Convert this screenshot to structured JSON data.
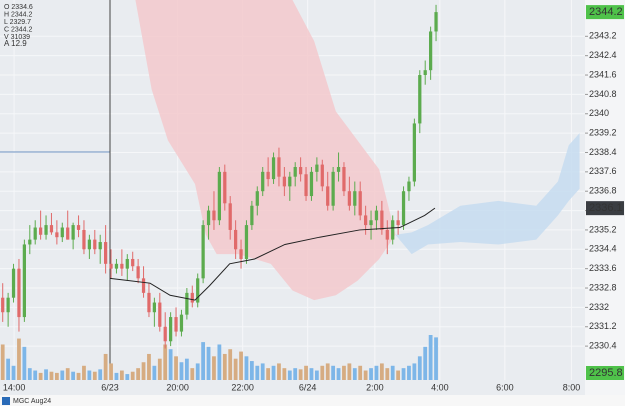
{
  "chart_data": {
    "type": "candlestick",
    "ylim": [
      2329.0,
      2344.7
    ],
    "yticks": [
      2330.4,
      2331.2,
      2332.0,
      2332.8,
      2333.6,
      2334.4,
      2335.2,
      2336.0,
      2336.8,
      2337.6,
      2338.4,
      2339.2,
      2340.0,
      2340.8,
      2341.6,
      2342.4,
      2343.2
    ],
    "xlim": [
      0,
      108
    ],
    "xticks": [
      {
        "value": 2.6,
        "label": "14:00"
      },
      {
        "value": 20.3,
        "label": "6/23"
      },
      {
        "value": 32.8,
        "label": "20:00"
      },
      {
        "value": 44.8,
        "label": "22:00"
      },
      {
        "value": 56.8,
        "label": "6/24"
      },
      {
        "value": 69.2,
        "label": "2:00"
      },
      {
        "value": 81.2,
        "label": "4:00"
      },
      {
        "value": 93.2,
        "label": "6:00"
      },
      {
        "value": 105.5,
        "label": "8:00"
      }
    ],
    "grid": true,
    "up_color": "#5cab4e",
    "down_color": "#e06a6a",
    "volume_up_color": "#7db6e8",
    "volume_down_color": "#d6ac82",
    "open": [
      2332.4,
      2331.8,
      2332.4,
      2333.6,
      2331.6,
      2334.6,
      2334.8,
      2335.3,
      2335.0,
      2335.4,
      2335.1,
      2334.9,
      2335.3,
      2334.8,
      2335.4,
      2335.2,
      2334.4,
      2334.8,
      2334.4,
      2334.7,
      2333.8,
      2333.6,
      2333.8,
      2333.6,
      2334.0,
      2333.7,
      2333.2,
      2332.6,
      2331.8,
      2332.2,
      2331.2,
      2330.6,
      2331.6,
      2331.0,
      2331.7,
      2332.6,
      2332.2,
      2333.2,
      2335.4,
      2336.0,
      2335.6,
      2337.6,
      2336.3,
      2335.2,
      2334.4,
      2334.0,
      2335.4,
      2336.2,
      2336.8,
      2337.6,
      2337.3,
      2338.2,
      2337.4,
      2337.0,
      2337.4,
      2337.8,
      2337.5,
      2336.6,
      2337.6,
      2337.9,
      2337.0,
      2336.2,
      2337.6,
      2337.8,
      2336.8,
      2336.2,
      2336.8,
      2335.8,
      2335.4,
      2335.6,
      2336.0,
      2335.2,
      2334.8,
      2335.6,
      2335.4,
      2336.8,
      2337.2,
      2339.6,
      2341.6,
      2341.8,
      2343.4
    ],
    "high": [
      2333.0,
      2332.6,
      2333.8,
      2334.0,
      2334.8,
      2335.4,
      2335.6,
      2336.0,
      2335.8,
      2335.9,
      2335.6,
      2335.5,
      2336.0,
      2335.5,
      2335.8,
      2335.6,
      2335.0,
      2335.2,
      2335.0,
      2335.4,
      2334.4,
      2334.0,
      2334.4,
      2334.2,
      2334.3,
      2334.0,
      2333.7,
      2333.0,
      2332.4,
      2332.6,
      2331.8,
      2331.8,
      2332.0,
      2331.9,
      2332.8,
      2332.9,
      2333.4,
      2335.6,
      2336.2,
      2336.8,
      2337.8,
      2337.9,
      2336.6,
      2335.6,
      2334.8,
      2335.6,
      2336.4,
      2337.0,
      2337.8,
      2338.2,
      2338.4,
      2338.6,
      2337.8,
      2337.6,
      2338.0,
      2338.2,
      2337.8,
      2337.8,
      2338.2,
      2338.1,
      2337.6,
      2337.8,
      2338.4,
      2338.0,
      2337.4,
      2337.2,
      2337.2,
      2336.2,
      2336.0,
      2336.2,
      2336.4,
      2335.6,
      2335.8,
      2336.0,
      2337.0,
      2337.4,
      2339.8,
      2341.8,
      2342.2,
      2343.6,
      2344.5
    ],
    "low": [
      2331.4,
      2331.2,
      2332.2,
      2331.0,
      2331.4,
      2334.2,
      2334.6,
      2334.8,
      2334.8,
      2335.0,
      2334.6,
      2334.7,
      2334.8,
      2334.4,
      2334.9,
      2334.2,
      2334.0,
      2334.2,
      2333.8,
      2333.4,
      2333.2,
      2333.4,
      2333.3,
      2333.1,
      2333.5,
      2333.0,
      2332.4,
      2331.6,
      2331.2,
      2331.0,
      2330.3,
      2330.4,
      2330.8,
      2330.8,
      2331.5,
      2332.0,
      2332.0,
      2333.0,
      2334.8,
      2335.2,
      2335.4,
      2336.0,
      2334.8,
      2334.0,
      2333.6,
      2333.8,
      2335.2,
      2335.8,
      2336.6,
      2337.0,
      2337.1,
      2337.0,
      2336.6,
      2336.4,
      2337.0,
      2337.2,
      2336.4,
      2336.4,
      2337.2,
      2336.8,
      2336.0,
      2336.0,
      2337.2,
      2336.6,
      2336.0,
      2335.8,
      2335.6,
      2335.0,
      2334.8,
      2335.2,
      2335.0,
      2334.2,
      2334.6,
      2335.0,
      2335.2,
      2336.4,
      2337.0,
      2339.2,
      2341.2,
      2341.4,
      2343.0
    ],
    "close": [
      2331.8,
      2332.4,
      2333.6,
      2331.6,
      2334.6,
      2334.8,
      2335.3,
      2335.0,
      2335.4,
      2335.1,
      2334.9,
      2335.3,
      2334.8,
      2335.4,
      2335.2,
      2334.4,
      2334.8,
      2334.4,
      2334.7,
      2333.8,
      2333.6,
      2333.8,
      2333.6,
      2334.0,
      2333.7,
      2333.2,
      2332.6,
      2331.8,
      2332.2,
      2331.2,
      2330.6,
      2331.6,
      2331.0,
      2331.7,
      2332.6,
      2332.2,
      2333.2,
      2335.4,
      2336.0,
      2335.6,
      2337.6,
      2336.3,
      2335.2,
      2334.4,
      2334.0,
      2335.4,
      2336.2,
      2336.8,
      2337.6,
      2337.3,
      2338.2,
      2337.4,
      2337.0,
      2337.4,
      2337.8,
      2337.5,
      2336.6,
      2337.6,
      2337.9,
      2337.0,
      2336.2,
      2337.6,
      2337.8,
      2336.8,
      2336.2,
      2336.8,
      2335.8,
      2335.4,
      2335.6,
      2336.0,
      2335.2,
      2334.8,
      2335.6,
      2335.4,
      2336.8,
      2337.2,
      2339.6,
      2341.6,
      2341.8,
      2343.4,
      2344.2
    ],
    "volume": [
      30,
      18,
      12,
      35,
      28,
      10,
      8,
      6,
      9,
      7,
      6,
      8,
      10,
      7,
      6,
      12,
      8,
      7,
      9,
      22,
      14,
      6,
      8,
      5,
      7,
      10,
      15,
      22,
      12,
      18,
      30,
      26,
      20,
      15,
      18,
      10,
      14,
      32,
      28,
      20,
      30,
      22,
      26,
      18,
      24,
      20,
      16,
      12,
      14,
      10,
      12,
      14,
      10,
      8,
      10,
      9,
      12,
      10,
      8,
      12,
      14,
      12,
      10,
      12,
      14,
      10,
      12,
      8,
      10,
      12,
      14,
      10,
      12,
      8,
      10,
      12,
      14,
      20,
      28,
      38,
      36
    ],
    "cloud_bear": {
      "color": "#f3c9cc",
      "x": [
        25,
        28,
        31,
        36,
        38,
        40,
        44,
        50,
        54,
        58,
        62,
        66,
        70,
        73
      ],
      "upper": [
        2344.7,
        2344.7,
        2344.7,
        2344.7,
        2344.7,
        2344.7,
        2344.7,
        2344.7,
        2344.7,
        2343.0,
        2340.1,
        2338.9,
        2337.7,
        2335.0
      ],
      "lower": [
        2344.7,
        2341.0,
        2338.9,
        2337.1,
        2335.0,
        2334.2,
        2334.2,
        2333.8,
        2332.7,
        2332.3,
        2332.5,
        2333.1,
        2334.0,
        2335.0
      ]
    },
    "cloud_bull": {
      "color": "#c6dcf0",
      "x": [
        73,
        76,
        79,
        85,
        92,
        99,
        103,
        105,
        107
      ],
      "upper": [
        2335.0,
        2335.1,
        2335.4,
        2336.2,
        2336.4,
        2336.2,
        2337.2,
        2338.7,
        2339.2
      ],
      "lower": [
        2335.0,
        2334.2,
        2334.6,
        2334.7,
        2334.6,
        2334.8,
        2335.8,
        2336.4,
        2336.9
      ]
    },
    "ma": {
      "color": "#222222",
      "x": [
        20.3,
        27.7,
        31.4,
        36,
        38.7,
        42.4,
        47,
        52.6,
        59,
        66.4,
        73.8,
        78.4,
        80.3
      ],
      "values": [
        2333.2,
        2333.0,
        2332.5,
        2332.3,
        2332.9,
        2333.8,
        2334.0,
        2334.6,
        2334.9,
        2335.2,
        2335.3,
        2335.8,
        2336.1
      ]
    },
    "ohlc_legend": [
      "O 2334.6",
      "H 2344.2",
      "L 2329.7",
      "C 2344.2",
      "V 31039"
    ],
    "atr_label": "A  12.9",
    "side_label": "2295.8",
    "symbol_tab": "MGC Aug24"
  }
}
